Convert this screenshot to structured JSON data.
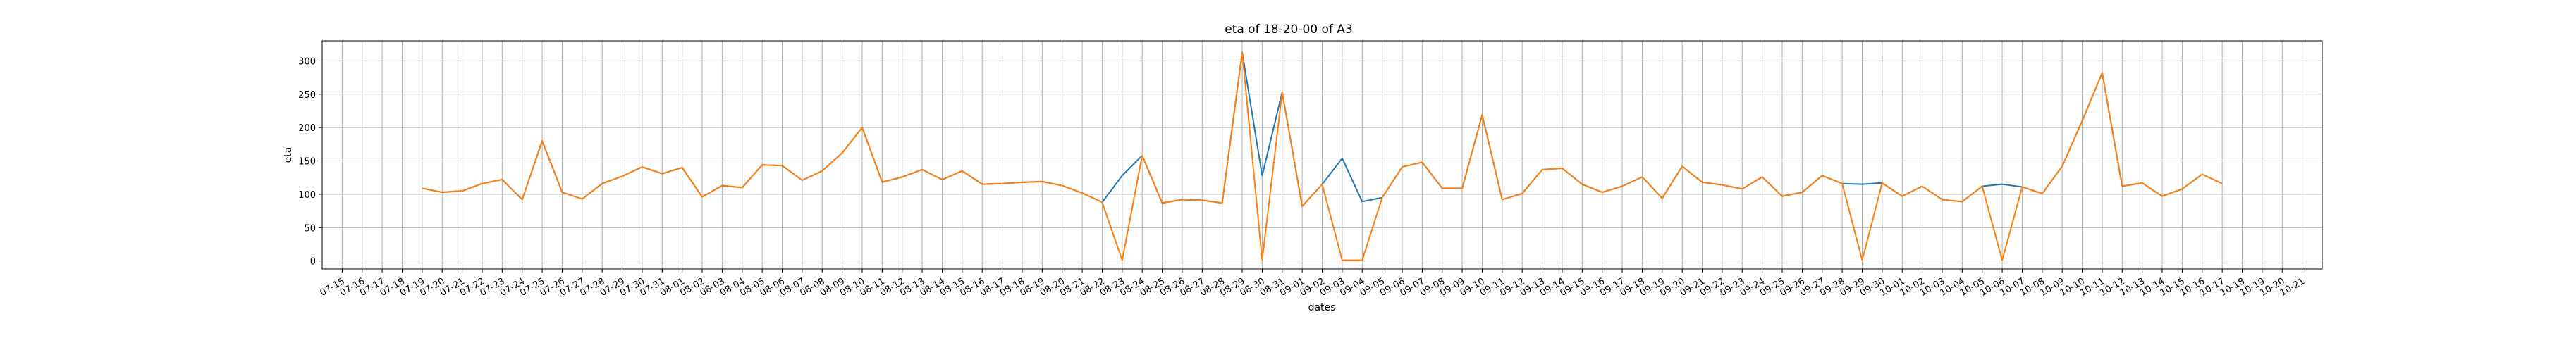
{
  "chart_data": {
    "type": "line",
    "title": "eta of 18-20-00 of A3",
    "xlabel": "dates",
    "ylabel": "eta",
    "ylim": [
      -12,
      330
    ],
    "yticks": [
      0,
      50,
      100,
      150,
      200,
      250,
      300
    ],
    "grid": true,
    "xlim": [
      "07-14",
      "10-22"
    ],
    "xticks": [
      "07-15",
      "07-16",
      "07-17",
      "07-18",
      "07-19",
      "07-20",
      "07-21",
      "07-22",
      "07-23",
      "07-24",
      "07-25",
      "07-26",
      "07-27",
      "07-28",
      "07-29",
      "07-30",
      "07-31",
      "08-01",
      "08-02",
      "08-03",
      "08-04",
      "08-05",
      "08-06",
      "08-07",
      "08-08",
      "08-09",
      "08-10",
      "08-11",
      "08-12",
      "08-13",
      "08-14",
      "08-15",
      "08-16",
      "08-17",
      "08-18",
      "08-19",
      "08-20",
      "08-21",
      "08-22",
      "08-23",
      "08-24",
      "08-25",
      "08-26",
      "08-27",
      "08-28",
      "08-29",
      "08-30",
      "08-31",
      "09-01",
      "09-02",
      "09-03",
      "09-04",
      "09-05",
      "09-06",
      "09-07",
      "09-08",
      "09-09",
      "09-10",
      "09-11",
      "09-12",
      "09-13",
      "09-14",
      "09-15",
      "09-16",
      "09-17",
      "09-18",
      "09-19",
      "09-20",
      "09-21",
      "09-22",
      "09-23",
      "09-24",
      "09-25",
      "09-26",
      "09-27",
      "09-28",
      "09-29",
      "09-30",
      "10-01",
      "10-02",
      "10-03",
      "10-04",
      "10-05",
      "10-06",
      "10-07",
      "10-08",
      "10-09",
      "10-10",
      "10-11",
      "10-12",
      "10-13",
      "10-14",
      "10-15",
      "10-16",
      "10-17",
      "10-18",
      "10-19",
      "10-20",
      "10-21"
    ],
    "x": [
      "07-19",
      "07-20",
      "07-21",
      "07-22",
      "07-23",
      "07-24",
      "07-25",
      "07-26",
      "07-27",
      "07-28",
      "07-29",
      "07-30",
      "07-31",
      "08-01",
      "08-02",
      "08-03",
      "08-04",
      "08-05",
      "08-06",
      "08-07",
      "08-08",
      "08-09",
      "08-10",
      "08-11",
      "08-12",
      "08-13",
      "08-14",
      "08-15",
      "08-16",
      "08-17",
      "08-18",
      "08-19",
      "08-20",
      "08-21",
      "08-22",
      "08-23",
      "08-24",
      "08-25",
      "08-26",
      "08-27",
      "08-28",
      "08-29",
      "08-30",
      "08-31",
      "09-01",
      "09-02",
      "09-03",
      "09-04",
      "09-05",
      "09-06",
      "09-07",
      "09-08",
      "09-09",
      "09-10",
      "09-11",
      "09-12",
      "09-13",
      "09-14",
      "09-15",
      "09-16",
      "09-17",
      "09-18",
      "09-19",
      "09-20",
      "09-21",
      "09-22",
      "09-23",
      "09-24",
      "09-25",
      "09-26",
      "09-27",
      "09-28",
      "09-29",
      "09-30",
      "10-01",
      "10-02",
      "10-03",
      "10-04",
      "10-05",
      "10-06",
      "10-07",
      "10-08",
      "10-09",
      "10-10",
      "10-11",
      "10-12",
      "10-13",
      "10-14",
      "10-15",
      "10-16",
      "10-17"
    ],
    "series": [
      {
        "color": "#1f77b4",
        "values": [
          109,
          103,
          105,
          116,
          122,
          92,
          180,
          103,
          93,
          116,
          127,
          141,
          131,
          140,
          96,
          113,
          110,
          144,
          143,
          121,
          135,
          162,
          200,
          118,
          126,
          137,
          122,
          135,
          115,
          116,
          118,
          119,
          113,
          102,
          88,
          128,
          158,
          87,
          92,
          91,
          87,
          313,
          128,
          253,
          82,
          115,
          154,
          89,
          95,
          141,
          148,
          109,
          109,
          219,
          92,
          101,
          137,
          139,
          115,
          103,
          112,
          126,
          94,
          142,
          118,
          114,
          108,
          126,
          97,
          103,
          128,
          116,
          115,
          117,
          97,
          112,
          92,
          89,
          112,
          115,
          111,
          101,
          142,
          210,
          282,
          112,
          117,
          97,
          108,
          130,
          116
        ]
      },
      {
        "color": "#ff7f0e",
        "values": [
          109,
          103,
          105,
          116,
          122,
          92,
          180,
          103,
          93,
          116,
          127,
          141,
          131,
          140,
          96,
          113,
          110,
          144,
          143,
          121,
          135,
          162,
          200,
          118,
          126,
          137,
          122,
          135,
          115,
          116,
          118,
          119,
          113,
          102,
          88,
          1,
          158,
          87,
          92,
          91,
          87,
          313,
          1,
          253,
          82,
          115,
          1,
          1,
          95,
          141,
          148,
          109,
          109,
          219,
          92,
          101,
          137,
          139,
          115,
          103,
          112,
          126,
          94,
          142,
          118,
          114,
          108,
          126,
          97,
          103,
          128,
          116,
          1,
          117,
          97,
          112,
          92,
          89,
          112,
          1,
          111,
          101,
          142,
          210,
          282,
          112,
          117,
          97,
          108,
          130,
          116
        ]
      }
    ]
  }
}
